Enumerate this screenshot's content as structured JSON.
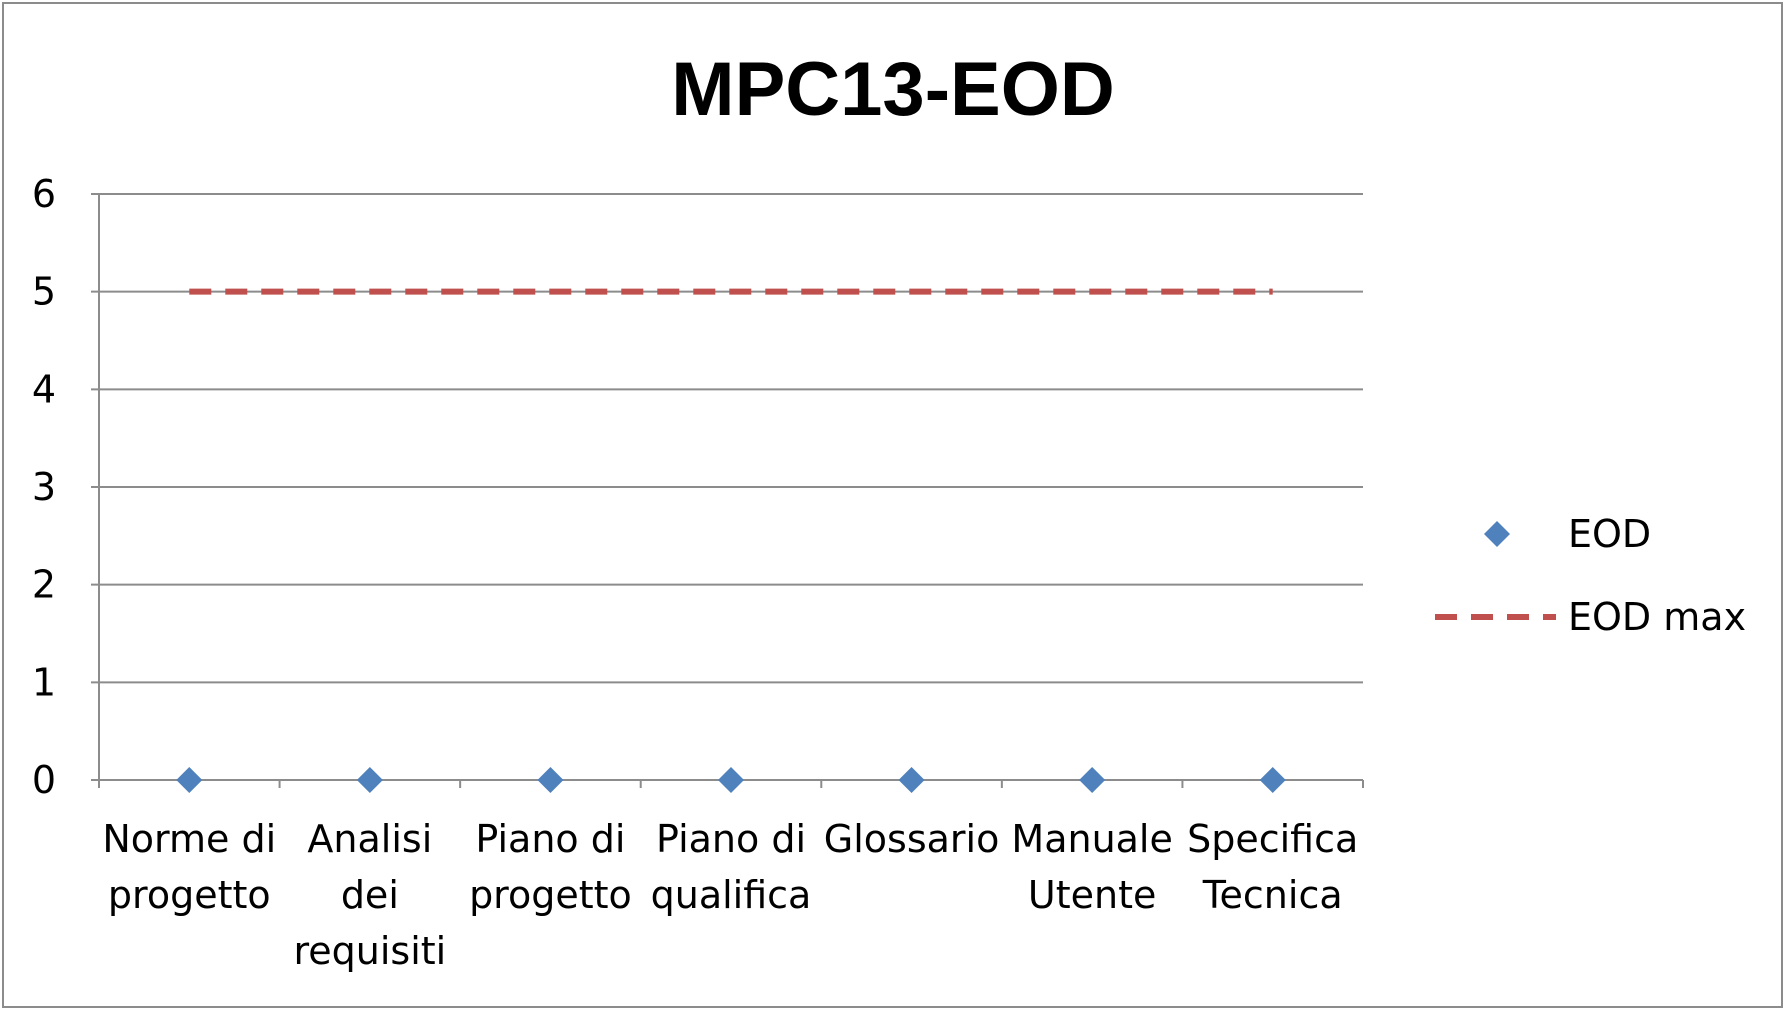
{
  "chart_data": {
    "type": "line",
    "title": "MPC13-EOD",
    "xlabel": "",
    "ylabel": "",
    "categories": [
      [
        "Norme di",
        "progetto"
      ],
      [
        "Analisi",
        "dei",
        "requisiti"
      ],
      [
        "Piano di",
        "progetto"
      ],
      [
        "Piano di",
        "qualifica"
      ],
      [
        "Glossario"
      ],
      [
        "Manuale",
        "Utente"
      ],
      [
        "Specifica",
        "Tecnica"
      ]
    ],
    "ylim": [
      0,
      6
    ],
    "yticks": [
      0,
      1,
      2,
      3,
      4,
      5,
      6
    ],
    "grid": true,
    "legend_position": "right",
    "series": [
      {
        "name": "EOD",
        "style": "markers",
        "marker": "diamond",
        "color": "#4F81BD",
        "values": [
          0,
          0,
          0,
          0,
          0,
          0,
          0
        ]
      },
      {
        "name": "EOD max",
        "style": "dashed-line",
        "color": "#C0504D",
        "values": [
          5,
          5,
          5,
          5,
          5,
          5,
          5
        ]
      }
    ]
  },
  "colors": {
    "grid": "#8c8c8c",
    "frame": "#8c8c8c"
  }
}
